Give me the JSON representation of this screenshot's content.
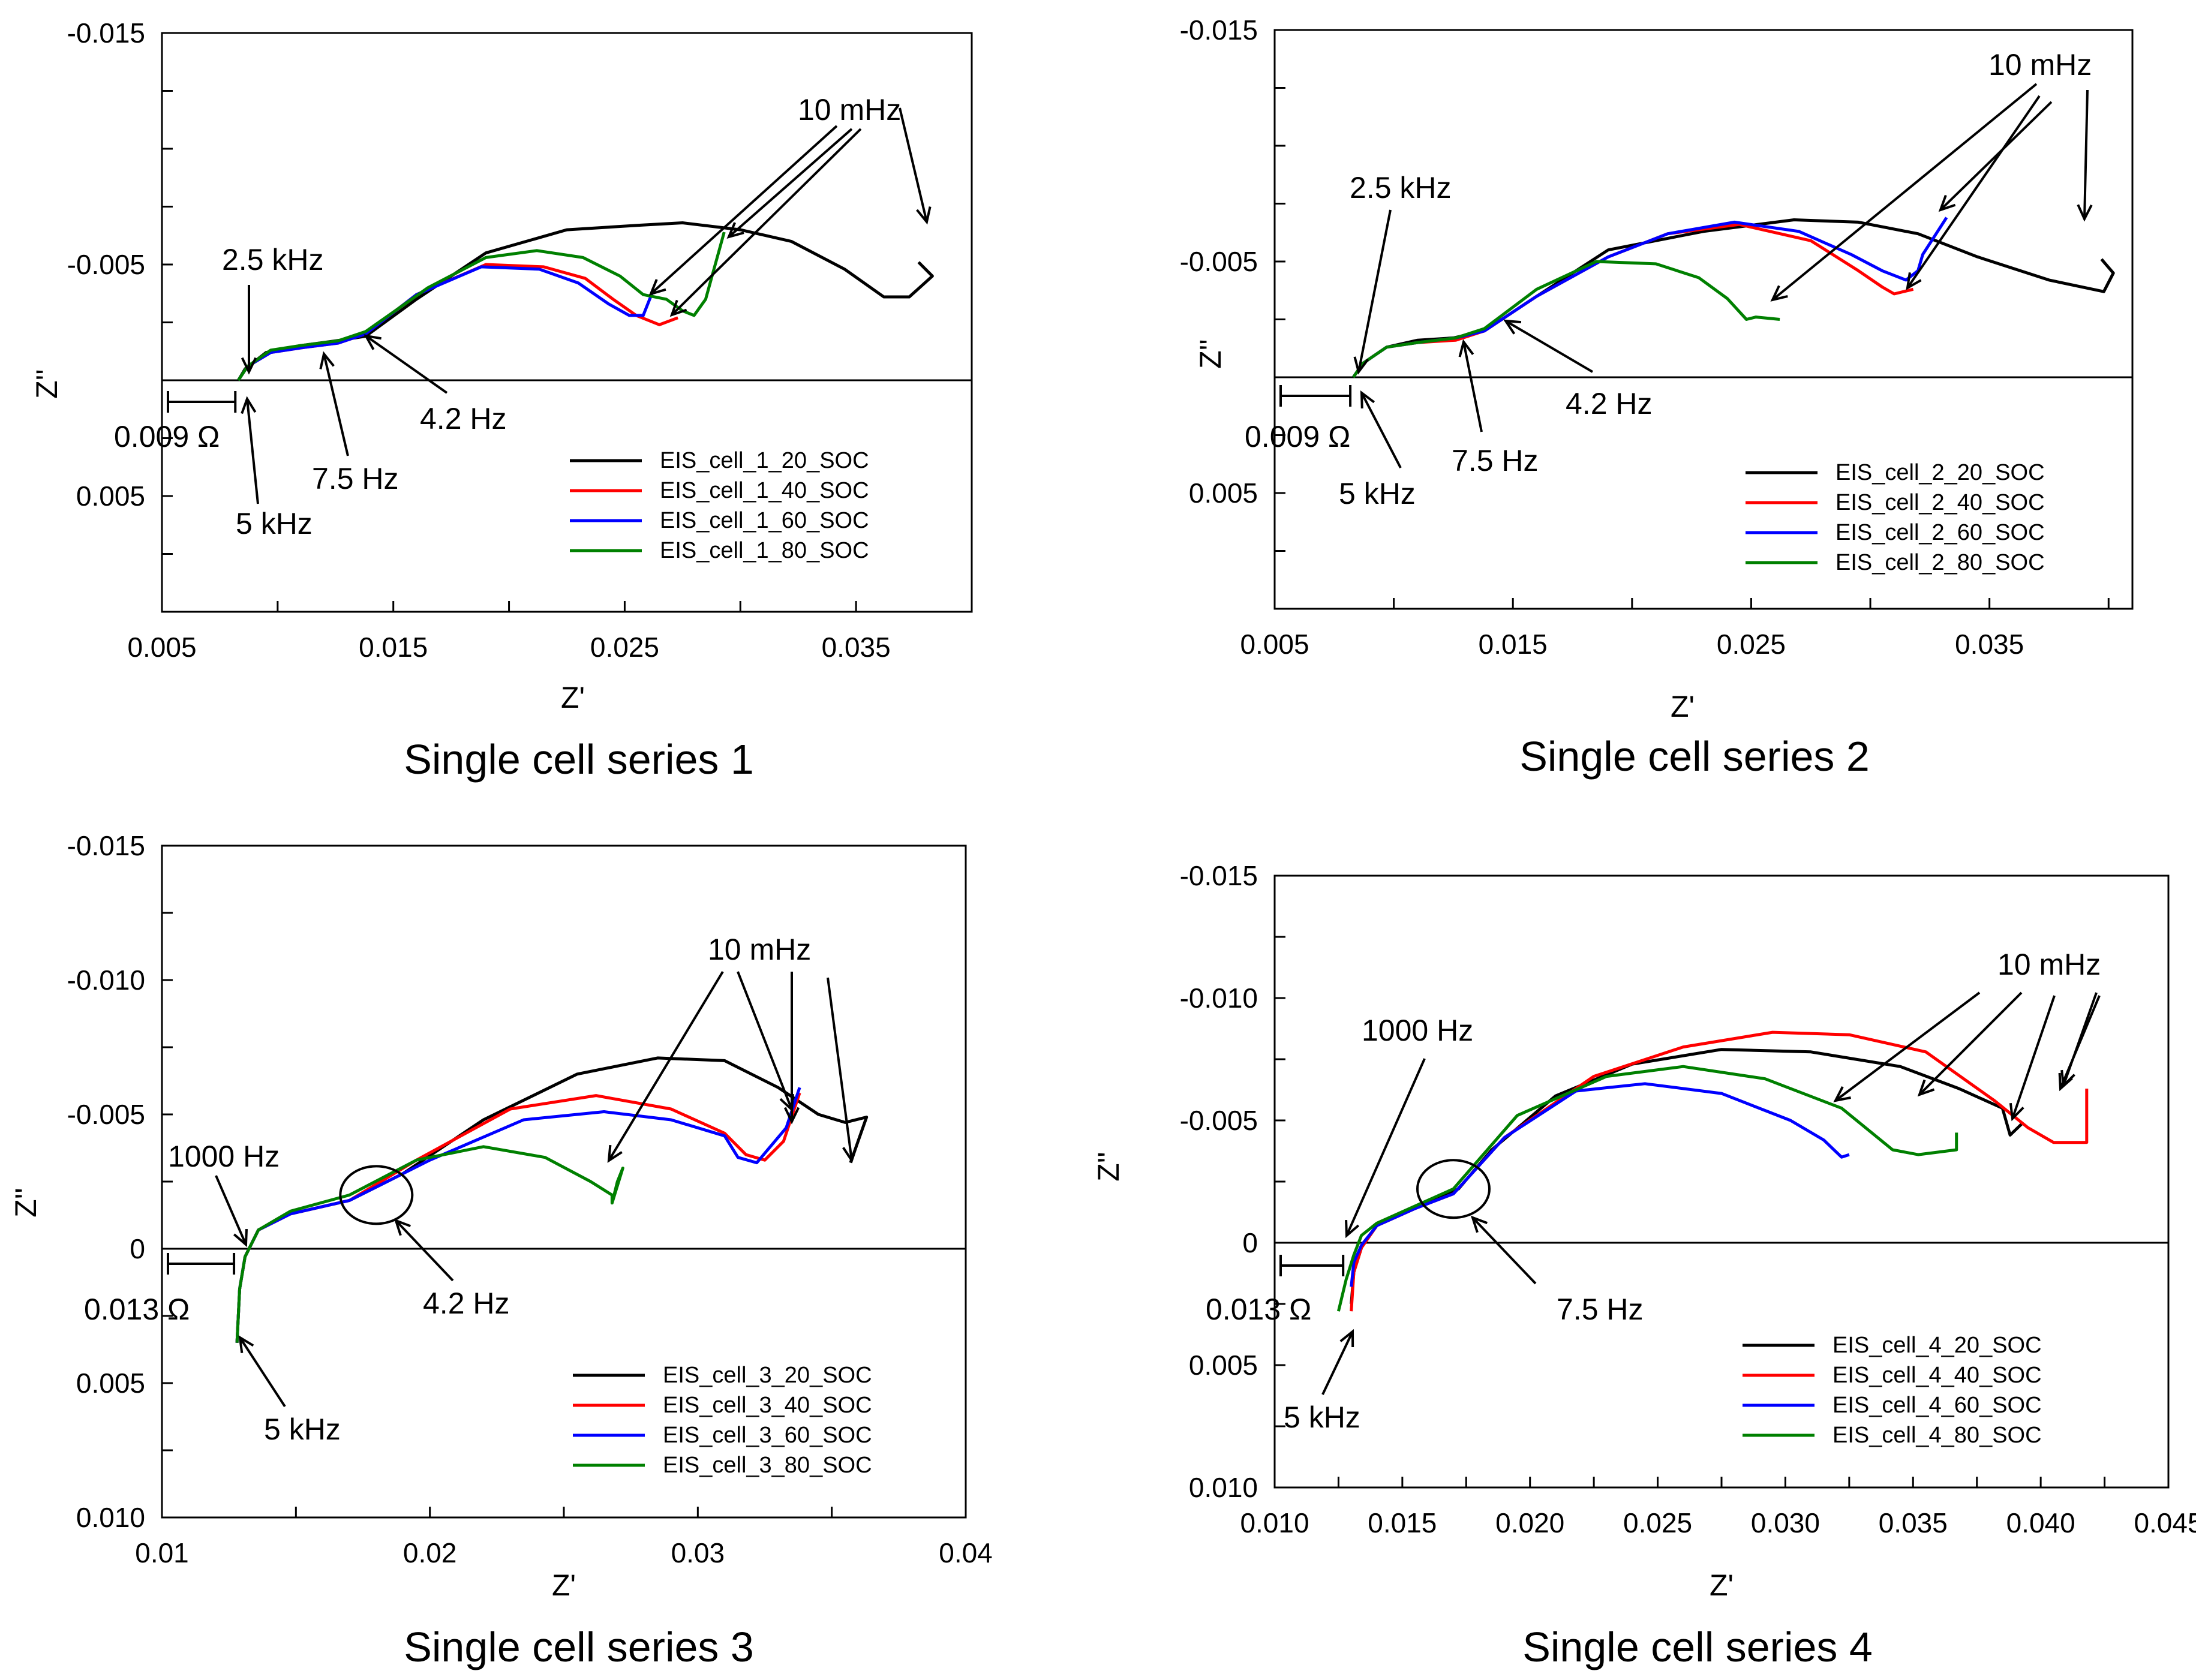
{
  "figure": {
    "panels": 4
  },
  "chart_data": [
    {
      "type": "line",
      "caption": "Single cell series 1",
      "xlabel": "Z'",
      "ylabel": "Z''",
      "xlim": [
        0.005,
        0.04
      ],
      "ylim": [
        -0.015,
        0.01
      ],
      "xticks": [
        0.005,
        0.015,
        0.025,
        0.035
      ],
      "xtick_labels": [
        "0.005",
        "0.015",
        "0.025",
        "0.035"
      ],
      "yticks": [
        -0.015,
        -0.005,
        0.005
      ],
      "ytick_labels": [
        "-0.015",
        "-0.005",
        "0.005"
      ],
      "offset_label": "0.009 Ω",
      "offset_range": [
        0.005,
        0.0083
      ],
      "series": [
        {
          "name": "EIS_cell_1_20_SOC",
          "color": "#000000",
          "x": [
            0.0083,
            0.0086,
            0.0095,
            0.011,
            0.0125,
            0.0138,
            0.016,
            0.019,
            0.0225,
            0.0257,
            0.0275,
            0.03,
            0.0322,
            0.0345,
            0.0362,
            0.0373,
            0.0383,
            0.0377
          ],
          "y": [
            0,
            -0.0005,
            -0.0012,
            -0.0015,
            -0.0017,
            -0.0019,
            -0.0035,
            -0.0055,
            -0.0065,
            -0.0067,
            -0.0068,
            -0.0065,
            -0.006,
            -0.0048,
            -0.0036,
            -0.0036,
            -0.0045,
            -0.0051
          ]
        },
        {
          "name": "EIS_cell_1_40_SOC",
          "color": "#ff0000",
          "x": [
            0.0083,
            0.0087,
            0.0097,
            0.011,
            0.0126,
            0.0138,
            0.016,
            0.019,
            0.0215,
            0.0233,
            0.0245,
            0.0255,
            0.0265,
            0.0273
          ],
          "y": [
            0,
            -0.0006,
            -0.0012,
            -0.0014,
            -0.0016,
            -0.002,
            -0.0037,
            -0.005,
            -0.0049,
            -0.0044,
            -0.0035,
            -0.0028,
            -0.0024,
            -0.0027
          ]
        },
        {
          "name": "EIS_cell_1_60_SOC",
          "color": "#0000ff",
          "x": [
            0.0083,
            0.0087,
            0.0097,
            0.011,
            0.0126,
            0.0138,
            0.016,
            0.0188,
            0.0213,
            0.023,
            0.0243,
            0.0252,
            0.0258,
            0.026,
            0.0262
          ],
          "y": [
            0,
            -0.0006,
            -0.0012,
            -0.0014,
            -0.0016,
            -0.002,
            -0.0037,
            -0.0049,
            -0.0048,
            -0.0042,
            -0.0033,
            -0.0028,
            -0.0028,
            -0.0033,
            -0.0038
          ]
        },
        {
          "name": "EIS_cell_1_80_SOC",
          "color": "#008000",
          "x": [
            0.0083,
            0.0087,
            0.0097,
            0.011,
            0.0126,
            0.0138,
            0.0165,
            0.019,
            0.0212,
            0.0232,
            0.0248,
            0.0258,
            0.0268,
            0.0275,
            0.028,
            0.0285,
            0.0293
          ],
          "y": [
            0,
            -0.0006,
            -0.0013,
            -0.0015,
            -0.0017,
            -0.0021,
            -0.004,
            -0.0053,
            -0.0056,
            -0.0053,
            -0.0045,
            -0.0037,
            -0.0035,
            -0.003,
            -0.0028,
            -0.0035,
            -0.0064
          ]
        }
      ],
      "legend": [
        "EIS_cell_1_20_SOC",
        "EIS_cell_1_40_SOC",
        "EIS_cell_1_60_SOC",
        "EIS_cell_1_80_SOC"
      ],
      "annotations": [
        {
          "text": "2.5 kHz",
          "x": 0.0083,
          "y": 0
        },
        {
          "text": "5 kHz",
          "x": 0.0082,
          "y": 0.0003
        },
        {
          "text": "7.5 Hz",
          "x": 0.0118,
          "y": -0.0012
        },
        {
          "text": "4.2 Hz",
          "x": 0.0135,
          "y": -0.0019
        },
        {
          "text": "10 mHz",
          "x": 0.0265,
          "y": -0.0035
        }
      ]
    },
    {
      "type": "line",
      "caption": "Single cell series 2",
      "xlabel": "Z'",
      "ylabel": "Z''",
      "xlim": [
        0.005,
        0.041
      ],
      "ylim": [
        -0.015,
        0.01
      ],
      "xticks": [
        0.005,
        0.015,
        0.025,
        0.035
      ],
      "xtick_labels": [
        "0.005",
        "0.015",
        "0.025",
        "0.035"
      ],
      "yticks": [
        -0.015,
        -0.005,
        0.005
      ],
      "ytick_labels": [
        "-0.015",
        "-0.005",
        "0.005"
      ],
      "offset_label": "0.009 Ω",
      "offset_range": [
        0.005,
        0.0083
      ],
      "series": [
        {
          "name": "EIS_cell_2_20_SOC",
          "color": "#000000",
          "x": [
            0.0083,
            0.0087,
            0.0097,
            0.011,
            0.0125,
            0.0138,
            0.016,
            0.019,
            0.023,
            0.0268,
            0.0295,
            0.032,
            0.0345,
            0.0375,
            0.0398,
            0.0402,
            0.0397
          ],
          "y": [
            0,
            -0.0006,
            -0.0013,
            -0.0016,
            -0.0017,
            -0.002,
            -0.0035,
            -0.0055,
            -0.0063,
            -0.0068,
            -0.0067,
            -0.0062,
            -0.0052,
            -0.0042,
            -0.0037,
            -0.0045,
            -0.0051
          ]
        },
        {
          "name": "EIS_cell_2_40_SOC",
          "color": "#ff0000",
          "x": [
            0.0083,
            0.0087,
            0.0097,
            0.011,
            0.0126,
            0.0138,
            0.016,
            0.019,
            0.0215,
            0.0245,
            0.0275,
            0.0295,
            0.0305,
            0.031,
            0.0318
          ],
          "y": [
            0,
            -0.0006,
            -0.0013,
            -0.0015,
            -0.0016,
            -0.002,
            -0.0035,
            -0.0052,
            -0.0062,
            -0.0066,
            -0.0059,
            -0.0046,
            -0.0039,
            -0.0036,
            -0.0038
          ]
        },
        {
          "name": "EIS_cell_2_60_SOC",
          "color": "#0000ff",
          "x": [
            0.0083,
            0.0087,
            0.0097,
            0.011,
            0.0126,
            0.0138,
            0.016,
            0.019,
            0.0215,
            0.0243,
            0.027,
            0.0292,
            0.0305,
            0.0315,
            0.032,
            0.0322,
            0.0332
          ],
          "y": [
            0,
            -0.0006,
            -0.0013,
            -0.0015,
            -0.0017,
            -0.002,
            -0.0035,
            -0.0052,
            -0.0062,
            -0.0067,
            -0.0063,
            -0.0053,
            -0.0046,
            -0.0042,
            -0.0046,
            -0.0053,
            -0.0069
          ]
        },
        {
          "name": "EIS_cell_2_80_SOC",
          "color": "#008000",
          "x": [
            0.0083,
            0.0087,
            0.0097,
            0.011,
            0.0126,
            0.0138,
            0.016,
            0.0185,
            0.021,
            0.0228,
            0.024,
            0.0248,
            0.0252,
            0.0262
          ],
          "y": [
            0,
            -0.0006,
            -0.0013,
            -0.0015,
            -0.0017,
            -0.0021,
            -0.0038,
            -0.005,
            -0.0049,
            -0.0043,
            -0.0034,
            -0.0025,
            -0.0026,
            -0.0025
          ]
        }
      ],
      "legend": [
        "EIS_cell_2_20_SOC",
        "EIS_cell_2_40_SOC",
        "EIS_cell_2_60_SOC",
        "EIS_cell_2_80_SOC"
      ],
      "annotations": [
        {
          "text": "2.5 kHz",
          "x": 0.0083,
          "y": 0
        },
        {
          "text": "5 kHz",
          "x": 0.0083,
          "y": 0.0003
        },
        {
          "text": "7.5 Hz",
          "x": 0.013,
          "y": -0.0016
        },
        {
          "text": "4.2 Hz",
          "x": 0.0145,
          "y": -0.0026
        },
        {
          "text": "10 mHz",
          "x": 0.0255,
          "y": -0.0033
        }
      ]
    },
    {
      "type": "line",
      "caption": "Single cell series 3",
      "xlabel": "Z'",
      "ylabel": "Z''",
      "xlim": [
        0.01,
        0.04
      ],
      "ylim": [
        -0.015,
        0.01
      ],
      "xticks": [
        0.01,
        0.02,
        0.03,
        0.04
      ],
      "xtick_labels": [
        "0.01",
        "0.02",
        "0.03",
        "0.04"
      ],
      "yticks": [
        -0.015,
        -0.01,
        -0.005,
        0,
        0.005,
        0.01
      ],
      "ytick_labels": [
        "-0.015",
        "-0.010",
        "-0.005",
        "0",
        "0.005",
        "0.010"
      ],
      "offset_label": "0.013 Ω",
      "offset_range": [
        0.01,
        0.0128
      ],
      "series": [
        {
          "name": "EIS_cell_3_20_SOC",
          "color": "#000000",
          "x": [
            0.0128,
            0.0129,
            0.0131,
            0.0136,
            0.0148,
            0.017,
            0.019,
            0.022,
            0.0255,
            0.0285,
            0.031,
            0.033,
            0.0345,
            0.0355,
            0.0363,
            0.0357
          ],
          "y": [
            0.0035,
            0.0015,
            0.0003,
            -0.0007,
            -0.0013,
            -0.0018,
            -0.0028,
            -0.0048,
            -0.0065,
            -0.0071,
            -0.007,
            -0.006,
            -0.005,
            -0.0047,
            -0.0049,
            -0.0032
          ]
        },
        {
          "name": "EIS_cell_3_40_SOC",
          "color": "#ff0000",
          "x": [
            0.0128,
            0.0129,
            0.0131,
            0.0136,
            0.0148,
            0.017,
            0.0195,
            0.023,
            0.0262,
            0.029,
            0.031,
            0.0318,
            0.0325,
            0.0332,
            0.0338
          ],
          "y": [
            0.0035,
            0.0015,
            0.0003,
            -0.0007,
            -0.0013,
            -0.0018,
            -0.0033,
            -0.0052,
            -0.0057,
            -0.0052,
            -0.0043,
            -0.0035,
            -0.0033,
            -0.004,
            -0.0058
          ]
        },
        {
          "name": "EIS_cell_3_60_SOC",
          "color": "#0000ff",
          "x": [
            0.0128,
            0.0129,
            0.0131,
            0.0136,
            0.0148,
            0.017,
            0.02,
            0.0235,
            0.0265,
            0.029,
            0.031,
            0.0315,
            0.0322,
            0.0333,
            0.0338
          ],
          "y": [
            0.0035,
            0.0015,
            0.0003,
            -0.0007,
            -0.0013,
            -0.0018,
            -0.0033,
            -0.0048,
            -0.0051,
            -0.0048,
            -0.0042,
            -0.0034,
            -0.0032,
            -0.0045,
            -0.006
          ]
        },
        {
          "name": "EIS_cell_3_80_SOC",
          "color": "#008000",
          "x": [
            0.0128,
            0.0129,
            0.0131,
            0.0136,
            0.0148,
            0.017,
            0.0195,
            0.022,
            0.0243,
            0.026,
            0.0268,
            0.0268,
            0.027,
            0.0272,
            0.0268
          ],
          "y": [
            0.0035,
            0.0015,
            0.0003,
            -0.0007,
            -0.0014,
            -0.002,
            -0.0033,
            -0.0038,
            -0.0034,
            -0.0025,
            -0.002,
            -0.0017,
            -0.0025,
            -0.003,
            -0.0017
          ]
        }
      ],
      "legend": [
        "EIS_cell_3_20_SOC",
        "EIS_cell_3_40_SOC",
        "EIS_cell_3_60_SOC",
        "EIS_cell_3_80_SOC"
      ],
      "annotations": [
        {
          "text": "1000 Hz",
          "x": 0.0129,
          "y": 0
        },
        {
          "text": "5 kHz",
          "x": 0.0128,
          "y": 0.0033
        },
        {
          "text": "4.2 Hz",
          "x": 0.0185,
          "y": -0.0009
        },
        {
          "text": "10 mHz",
          "x": 0.0268,
          "y": -0.0033
        }
      ],
      "circle": {
        "x": 0.018,
        "y": -0.002
      }
    },
    {
      "type": "line",
      "caption": "Single cell series 4",
      "xlabel": "Z'",
      "ylabel": "Z''",
      "xlim": [
        0.01,
        0.045
      ],
      "ylim": [
        -0.015,
        0.01
      ],
      "xticks": [
        0.01,
        0.015,
        0.02,
        0.025,
        0.03,
        0.035,
        0.04,
        0.045
      ],
      "xtick_labels": [
        "0.010",
        "0.015",
        "0.020",
        "0.025",
        "0.030",
        "0.035",
        "0.040",
        "0.045"
      ],
      "yticks": [
        -0.015,
        -0.01,
        -0.005,
        0,
        0.005,
        0.01
      ],
      "ytick_labels": [
        "-0.015",
        "-0.010",
        "-0.005",
        "0",
        "0.005",
        "0.010"
      ],
      "offset_label": "0.013 Ω",
      "offset_range": [
        0.01,
        0.0128
      ],
      "series": [
        {
          "name": "EIS_cell_4_20_SOC",
          "color": "#000000",
          "x": [
            0.013,
            0.0131,
            0.0134,
            0.014,
            0.0155,
            0.0172,
            0.0185,
            0.021,
            0.024,
            0.0275,
            0.031,
            0.0345,
            0.0368,
            0.0385,
            0.0388,
            0.0393
          ],
          "y": [
            0.0025,
            0.0012,
            0.0002,
            -0.0007,
            -0.0014,
            -0.0022,
            -0.0038,
            -0.006,
            -0.0073,
            -0.0079,
            -0.0078,
            -0.0072,
            -0.0063,
            -0.0055,
            -0.0044,
            -0.0049
          ]
        },
        {
          "name": "EIS_cell_4_40_SOC",
          "color": "#ff0000",
          "x": [
            0.013,
            0.0131,
            0.0134,
            0.014,
            0.0155,
            0.017,
            0.019,
            0.0225,
            0.026,
            0.0295,
            0.0325,
            0.0355,
            0.0382,
            0.0395,
            0.0405,
            0.0418,
            0.0418
          ],
          "y": [
            0.0028,
            0.0012,
            0.0002,
            -0.0007,
            -0.0014,
            -0.002,
            -0.0043,
            -0.0068,
            -0.008,
            -0.0086,
            -0.0085,
            -0.0078,
            -0.0058,
            -0.0047,
            -0.0041,
            -0.0041,
            -0.0063
          ]
        },
        {
          "name": "EIS_cell_4_60_SOC",
          "color": "#0000ff",
          "x": [
            0.013,
            0.0131,
            0.0134,
            0.014,
            0.0155,
            0.017,
            0.019,
            0.0218,
            0.0245,
            0.0275,
            0.0302,
            0.0315,
            0.0322,
            0.0325
          ],
          "y": [
            0.0018,
            0.0008,
            0.0001,
            -0.0007,
            -0.0014,
            -0.002,
            -0.0043,
            -0.0062,
            -0.0065,
            -0.0061,
            -0.005,
            -0.0042,
            -0.0035,
            -0.0036
          ]
        },
        {
          "name": "EIS_cell_4_80_SOC",
          "color": "#008000",
          "x": [
            0.0125,
            0.0128,
            0.0131,
            0.0134,
            0.014,
            0.0155,
            0.017,
            0.0195,
            0.023,
            0.026,
            0.0292,
            0.0322,
            0.0342,
            0.0352,
            0.0367,
            0.0367
          ],
          "y": [
            0.0028,
            0.0015,
            0.0005,
            -0.0003,
            -0.0008,
            -0.0015,
            -0.0022,
            -0.0052,
            -0.0068,
            -0.0072,
            -0.0067,
            -0.0055,
            -0.0038,
            -0.0036,
            -0.0038,
            -0.0045
          ]
        }
      ],
      "legend": [
        "EIS_cell_4_20_SOC",
        "EIS_cell_4_40_SOC",
        "EIS_cell_4_60_SOC",
        "EIS_cell_4_80_SOC"
      ],
      "annotations": [
        {
          "text": "1000 Hz",
          "x": 0.013,
          "y": 0
        },
        {
          "text": "5 kHz",
          "x": 0.0131,
          "y": 0.0035
        },
        {
          "text": "7.5 Hz",
          "x": 0.0172,
          "y": -0.0011
        },
        {
          "text": "10 mHz",
          "x": 0.0335,
          "y": -0.0048
        }
      ],
      "circle": {
        "x": 0.017,
        "y": -0.0022
      }
    }
  ]
}
